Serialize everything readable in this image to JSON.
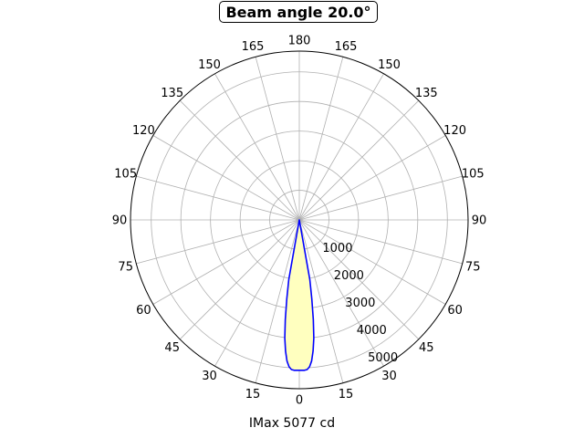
{
  "chart_data": {
    "type": "polar",
    "title": "Beam angle 20.0°",
    "xlabel": "IMax 5077 cd",
    "angle_ticks": [
      "180",
      "165",
      "150",
      "135",
      "120",
      "105",
      "90",
      "75",
      "60",
      "45",
      "30",
      "15",
      "0",
      "15",
      "30",
      "45",
      "60",
      "75",
      "90",
      "105",
      "120",
      "135",
      "150",
      "165"
    ],
    "radial_ticks": [
      "1000",
      "2000",
      "3000",
      "4000",
      "5000"
    ],
    "rmax": 5700,
    "ring_values": [
      1000,
      2000,
      3000,
      4000,
      5000,
      5700
    ],
    "spoke_step_deg": 15,
    "series": [
      {
        "color": "#0000ff",
        "fill": "#ffffbf",
        "angles_deg": [
          -10,
          -9,
          -8,
          -7,
          -6,
          -5,
          -4,
          -3,
          -2,
          -1,
          0,
          1,
          2,
          3,
          4,
          5,
          6,
          7,
          8,
          9,
          10
        ],
        "values": [
          2050,
          2700,
          3400,
          4020,
          4450,
          4780,
          4970,
          5060,
          5080,
          5080,
          5077,
          5080,
          5080,
          5060,
          4970,
          4780,
          4450,
          4020,
          3400,
          2700,
          2050
        ]
      }
    ]
  }
}
